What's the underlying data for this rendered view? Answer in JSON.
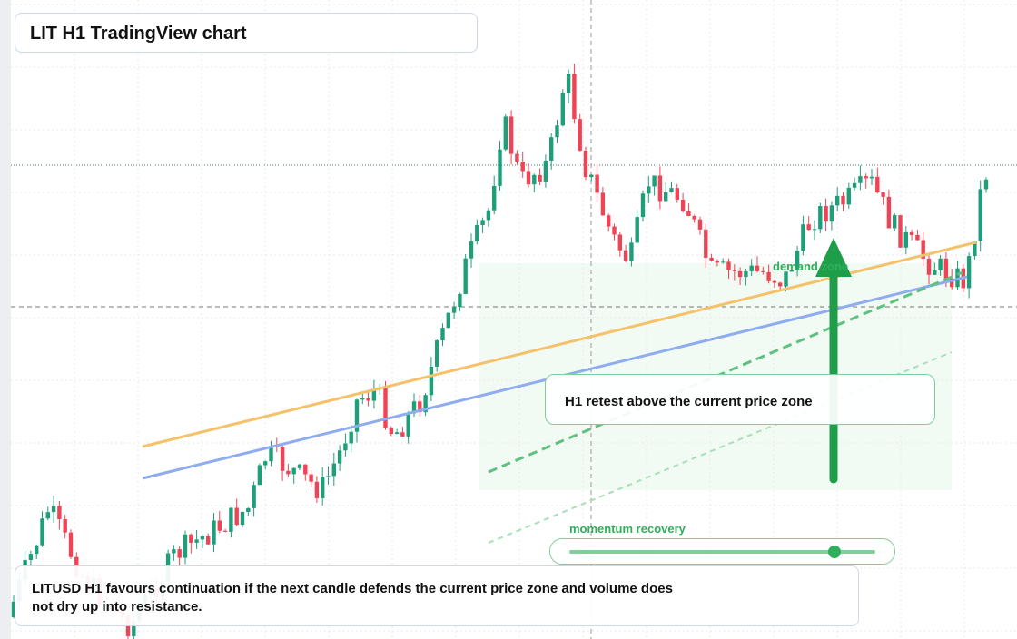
{
  "header": {
    "title": "LIT H1 TradingView chart"
  },
  "annotations": {
    "zone": "demand zone",
    "callout": "H1 retest above the current price zone",
    "slider": "momentum recovery"
  },
  "summary": "LITUSD H1 favours continuation if the next candle defends the current price zone and volume does not dry up into resistance."
}
